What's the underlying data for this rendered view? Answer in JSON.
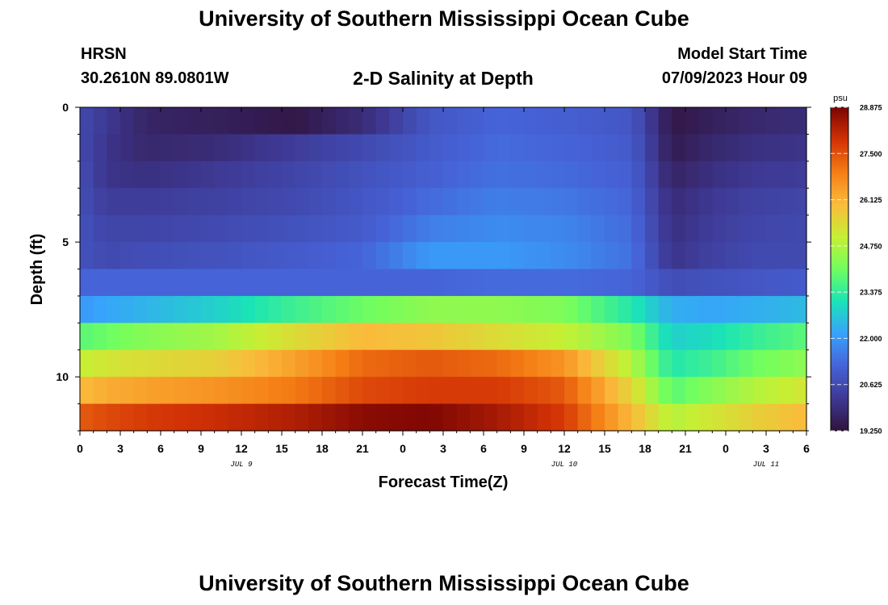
{
  "page": {
    "title": "University of Southern Mississippi Ocean Cube",
    "station": "HRSN",
    "coords": "30.2610N  89.0801W",
    "plot_title": "2-D Salinity at Depth",
    "model_label": "Model Start Time",
    "model_time": "07/09/2023 Hour 09",
    "footer_title": "University of Southern Mississippi Ocean Cube"
  },
  "colors": {
    "palette": [
      "#30123b",
      "#3e3994",
      "#4662d7",
      "#38a2fc",
      "#1ae4b6",
      "#71fe5f",
      "#c7ef34",
      "#fabb3b",
      "#f57d15",
      "#d23105",
      "#7a0403"
    ]
  },
  "chart_data": {
    "type": "heatmap",
    "title": "2-D Salinity at Depth",
    "xlabel": "Forecast Time(Z)",
    "ylabel": "Depth (ft)",
    "x_tick_labels": [
      "0",
      "3",
      "6",
      "9",
      "12",
      "15",
      "18",
      "21",
      "0",
      "3",
      "6",
      "9",
      "12",
      "15",
      "18",
      "21",
      "0",
      "3",
      "6"
    ],
    "x_ticks_hours": [
      0,
      3,
      6,
      9,
      12,
      15,
      18,
      21,
      24,
      27,
      30,
      33,
      36,
      39,
      42,
      45,
      48,
      51,
      54
    ],
    "xlim_hours": [
      0,
      54
    ],
    "date_labels": [
      {
        "text": "JUL 9",
        "hour": 12
      },
      {
        "text": "JUL 10",
        "hour": 36
      },
      {
        "text": "JUL 11",
        "hour": 51
      }
    ],
    "y_tick_labels": [
      "0",
      "5",
      "10"
    ],
    "y_ticks": [
      0,
      5,
      10
    ],
    "ylim_ft": [
      0,
      12
    ],
    "layer_depths_ft": [
      0.5,
      1.5,
      2.5,
      3.5,
      4.5,
      5.5,
      6.5,
      7.5,
      8.5,
      9.5,
      10.5,
      11.5
    ],
    "colorbar": {
      "unit": "psu",
      "range": [
        19.25,
        28.875
      ],
      "tick_labels": [
        "28.875",
        "27.500",
        "26.125",
        "24.750",
        "23.375",
        "22.000",
        "20.625",
        "19.250"
      ],
      "tick_values": [
        28.875,
        27.5,
        26.125,
        24.75,
        23.375,
        22.0,
        20.625,
        19.25
      ]
    },
    "series": [
      {
        "name": "layer 0-1 ft",
        "times": [
          0,
          2,
          5,
          10,
          16,
          21,
          26,
          31,
          36,
          41,
          44,
          47,
          50,
          54
        ],
        "values": [
          20.6,
          20.2,
          19.7,
          19.6,
          19.4,
          19.9,
          20.9,
          21.2,
          21.1,
          20.9,
          19.4,
          19.6,
          19.8,
          19.9
        ]
      },
      {
        "name": "layer 1-2 ft",
        "times": [
          0,
          2,
          5,
          10,
          16,
          21,
          26,
          31,
          36,
          41,
          44,
          47,
          50,
          54
        ],
        "values": [
          20.6,
          20.1,
          19.8,
          19.9,
          20.3,
          20.6,
          21.0,
          21.3,
          21.2,
          21.0,
          19.5,
          19.8,
          20.0,
          20.1
        ]
      },
      {
        "name": "layer 2-3 ft",
        "times": [
          0,
          2,
          5,
          10,
          16,
          21,
          26,
          31,
          36,
          41,
          44,
          47,
          50,
          54
        ],
        "values": [
          20.7,
          20.1,
          20.0,
          20.2,
          20.5,
          20.8,
          21.1,
          21.4,
          21.3,
          21.1,
          19.7,
          20.0,
          20.2,
          20.3
        ]
      },
      {
        "name": "layer 3-4 ft",
        "times": [
          0,
          2,
          5,
          10,
          16,
          21,
          26,
          31,
          36,
          41,
          44,
          47,
          50,
          54
        ],
        "values": [
          20.7,
          20.3,
          20.3,
          20.4,
          20.6,
          20.9,
          21.3,
          21.6,
          21.5,
          21.2,
          19.9,
          20.2,
          20.4,
          20.5
        ]
      },
      {
        "name": "layer 4-5 ft",
        "times": [
          0,
          2,
          5,
          10,
          16,
          21,
          26,
          31,
          36,
          41,
          44,
          47,
          50,
          54
        ],
        "values": [
          20.8,
          20.5,
          20.5,
          20.6,
          20.8,
          21.0,
          21.6,
          21.8,
          21.7,
          21.3,
          20.0,
          20.3,
          20.5,
          20.6
        ]
      },
      {
        "name": "layer 5-6 ft",
        "times": [
          0,
          2,
          5,
          10,
          16,
          21,
          26,
          31,
          36,
          41,
          44,
          47,
          50,
          54
        ],
        "values": [
          20.8,
          20.6,
          20.7,
          20.8,
          21.0,
          21.2,
          22.0,
          22.0,
          21.8,
          21.4,
          20.1,
          20.4,
          20.6,
          20.6
        ]
      },
      {
        "name": "layer 6-7 ft",
        "times": [
          0,
          2,
          5,
          10,
          16,
          21,
          26,
          31,
          36,
          41,
          44,
          47,
          50,
          54
        ],
        "values": [
          21.2,
          21.2,
          21.2,
          21.2,
          21.2,
          21.2,
          21.2,
          21.3,
          21.3,
          21.2,
          20.7,
          20.8,
          20.9,
          21.0
        ]
      },
      {
        "name": "layer 7-8 ft",
        "times": [
          0,
          2,
          5,
          10,
          16,
          21,
          26,
          31,
          36,
          41,
          44,
          47,
          50,
          54
        ],
        "values": [
          22.0,
          22.2,
          22.4,
          22.8,
          23.5,
          24.0,
          24.4,
          24.4,
          24.2,
          23.2,
          22.3,
          22.2,
          22.3,
          22.5
        ]
      },
      {
        "name": "layer 8-9 ft",
        "times": [
          0,
          2,
          5,
          10,
          16,
          21,
          26,
          31,
          36,
          41,
          44,
          47,
          50,
          54
        ],
        "values": [
          23.8,
          24.0,
          24.3,
          24.6,
          25.4,
          26.0,
          25.8,
          25.4,
          25.0,
          24.2,
          22.8,
          23.0,
          23.4,
          23.8
        ]
      },
      {
        "name": "layer 9-10 ft",
        "times": [
          0,
          2,
          5,
          10,
          16,
          21,
          26,
          31,
          36,
          41,
          44,
          47,
          50,
          54
        ],
        "values": [
          25.0,
          25.2,
          25.4,
          25.6,
          26.4,
          27.2,
          27.4,
          27.2,
          26.6,
          24.8,
          23.2,
          23.5,
          24.0,
          24.4
        ]
      },
      {
        "name": "layer 10-11 ft",
        "times": [
          0,
          2,
          5,
          10,
          16,
          21,
          26,
          31,
          36,
          41,
          44,
          47,
          50,
          54
        ],
        "values": [
          26.0,
          26.2,
          26.4,
          26.6,
          27.0,
          27.6,
          27.8,
          27.8,
          27.4,
          25.5,
          23.8,
          24.3,
          24.8,
          25.2
        ]
      },
      {
        "name": "layer 11-12 ft",
        "times": [
          0,
          2,
          5,
          10,
          16,
          21,
          26,
          31,
          36,
          41,
          44,
          47,
          50,
          54
        ],
        "values": [
          27.4,
          27.6,
          27.8,
          28.0,
          28.3,
          28.7,
          28.8,
          28.4,
          27.8,
          26.0,
          24.8,
          25.2,
          25.6,
          26.0
        ]
      }
    ]
  }
}
